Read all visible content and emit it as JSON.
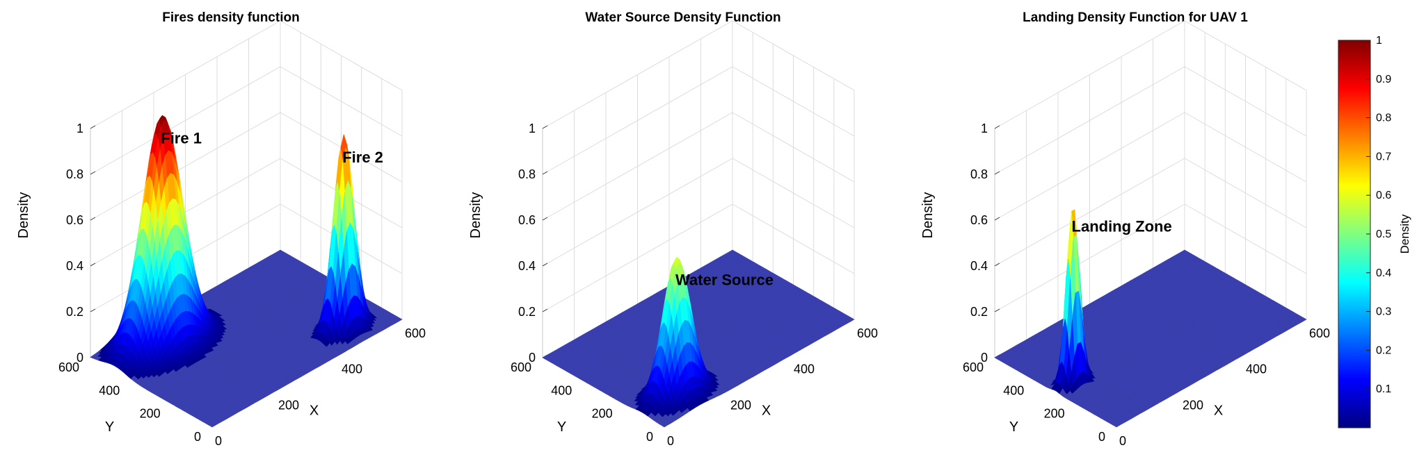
{
  "chart_data": [
    {
      "type": "surface",
      "title": "Fires density function",
      "xlabel": "X",
      "ylabel": "Y",
      "zlabel": "Density",
      "xlim": [
        0,
        600
      ],
      "ylim": [
        0,
        600
      ],
      "zlim": [
        0,
        1
      ],
      "xticks": [
        "0",
        "200",
        "400",
        "600"
      ],
      "yticks": [
        "0",
        "200",
        "400",
        "600"
      ],
      "zticks": [
        "0",
        "0.2",
        "0.4",
        "0.6",
        "0.8",
        "1"
      ],
      "grid": true,
      "peaks": [
        {
          "x": 150,
          "y": 480,
          "sigma": 55,
          "height": 1.0,
          "label": "Fire 1"
        },
        {
          "x": 480,
          "y": 100,
          "sigma": 28,
          "height": 0.85,
          "label": "Fire 2"
        }
      ]
    },
    {
      "type": "surface",
      "title": "Water Source Density Function",
      "xlabel": "X",
      "ylabel": "Y",
      "zlabel": "Density",
      "xlim": [
        0,
        600
      ],
      "ylim": [
        0,
        600
      ],
      "zlim": [
        0,
        1
      ],
      "xticks": [
        "0",
        "200",
        "400",
        "600"
      ],
      "yticks": [
        "0",
        "200",
        "400",
        "600"
      ],
      "zticks": [
        "0",
        "0.2",
        "0.4",
        "0.6",
        "0.8",
        "1"
      ],
      "grid": true,
      "peaks": [
        {
          "x": 110,
          "y": 110,
          "sigma": 38,
          "height": 0.6,
          "label": "Water Source"
        }
      ]
    },
    {
      "type": "surface",
      "title": "Landing Density Function for UAV 1",
      "xlabel": "X",
      "ylabel": "Y",
      "zlabel": "Density",
      "xlim": [
        0,
        600
      ],
      "ylim": [
        0,
        600
      ],
      "zlim": [
        0,
        1
      ],
      "xticks": [
        "0",
        "200",
        "400",
        "600"
      ],
      "yticks": [
        "0",
        "200",
        "400",
        "600"
      ],
      "zticks": [
        "0",
        "0.2",
        "0.4",
        "0.6",
        "0.8",
        "1"
      ],
      "grid": true,
      "peaks": [
        {
          "x": 55,
          "y": 300,
          "sigma": 18,
          "height": 0.78,
          "label": "Landing Zone"
        }
      ]
    }
  ],
  "colorbar": {
    "label": "Density",
    "colormap": "jet",
    "range": [
      0,
      1
    ],
    "ticks": [
      "0.1",
      "0.2",
      "0.3",
      "0.4",
      "0.5",
      "0.6",
      "0.7",
      "0.8",
      "0.9",
      "1"
    ]
  }
}
